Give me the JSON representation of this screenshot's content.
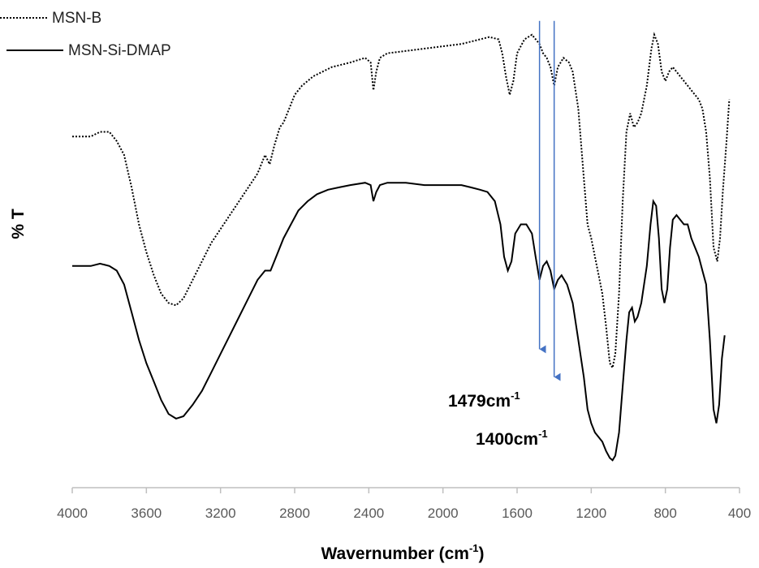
{
  "chart_data": {
    "type": "line",
    "title": "",
    "xlabel": "Wavernumber (cm",
    "xlabel_sup": "-1",
    "xlabel_tail": ")",
    "ylabel": "% T",
    "xlim": [
      4000,
      400
    ],
    "x_reversed": true,
    "x_ticks": [
      "4000",
      "3600",
      "3200",
      "2800",
      "2400",
      "2000",
      "1600",
      "1200",
      "800",
      "400"
    ],
    "y_ticks_shown": false,
    "grid": false,
    "legend_position": "top-left",
    "series": [
      {
        "name": "MSN-B",
        "style": "dotted",
        "color": "#000000",
        "points": [
          [
            4000,
            74
          ],
          [
            3900,
            74
          ],
          [
            3850,
            75
          ],
          [
            3800,
            75
          ],
          [
            3760,
            73
          ],
          [
            3720,
            70
          ],
          [
            3680,
            63
          ],
          [
            3640,
            55
          ],
          [
            3600,
            49
          ],
          [
            3560,
            44
          ],
          [
            3520,
            40
          ],
          [
            3480,
            38
          ],
          [
            3440,
            37.5
          ],
          [
            3400,
            39
          ],
          [
            3350,
            43
          ],
          [
            3300,
            47
          ],
          [
            3250,
            51
          ],
          [
            3200,
            54
          ],
          [
            3150,
            57
          ],
          [
            3100,
            60
          ],
          [
            3050,
            63
          ],
          [
            3000,
            66
          ],
          [
            2960,
            70
          ],
          [
            2935,
            68
          ],
          [
            2910,
            72
          ],
          [
            2880,
            76
          ],
          [
            2860,
            77
          ],
          [
            2830,
            80
          ],
          [
            2800,
            83
          ],
          [
            2760,
            85
          ],
          [
            2700,
            87
          ],
          [
            2600,
            89
          ],
          [
            2500,
            90
          ],
          [
            2420,
            91
          ],
          [
            2390,
            90
          ],
          [
            2375,
            84
          ],
          [
            2360,
            88
          ],
          [
            2340,
            91
          ],
          [
            2300,
            92
          ],
          [
            2200,
            92.5
          ],
          [
            2100,
            93
          ],
          [
            2000,
            93.5
          ],
          [
            1900,
            94
          ],
          [
            1800,
            95
          ],
          [
            1750,
            95.5
          ],
          [
            1700,
            95
          ],
          [
            1680,
            92
          ],
          [
            1660,
            87
          ],
          [
            1640,
            83
          ],
          [
            1620,
            86
          ],
          [
            1600,
            92
          ],
          [
            1560,
            95
          ],
          [
            1520,
            96
          ],
          [
            1479,
            94
          ],
          [
            1460,
            92
          ],
          [
            1440,
            91
          ],
          [
            1420,
            89
          ],
          [
            1400,
            85
          ],
          [
            1380,
            89
          ],
          [
            1350,
            91
          ],
          [
            1320,
            90
          ],
          [
            1300,
            88
          ],
          [
            1270,
            80
          ],
          [
            1240,
            65
          ],
          [
            1220,
            55
          ],
          [
            1200,
            52
          ],
          [
            1180,
            48
          ],
          [
            1160,
            44
          ],
          [
            1140,
            40
          ],
          [
            1120,
            33
          ],
          [
            1100,
            25
          ],
          [
            1085,
            24
          ],
          [
            1070,
            27
          ],
          [
            1050,
            40
          ],
          [
            1030,
            60
          ],
          [
            1010,
            75
          ],
          [
            990,
            79
          ],
          [
            970,
            76
          ],
          [
            950,
            77
          ],
          [
            930,
            79
          ],
          [
            900,
            85
          ],
          [
            875,
            93
          ],
          [
            860,
            96
          ],
          [
            840,
            94
          ],
          [
            820,
            88
          ],
          [
            800,
            86
          ],
          [
            780,
            88
          ],
          [
            760,
            89
          ],
          [
            740,
            88
          ],
          [
            720,
            87
          ],
          [
            700,
            86
          ],
          [
            680,
            85
          ],
          [
            660,
            84
          ],
          [
            640,
            83
          ],
          [
            620,
            82
          ],
          [
            600,
            80
          ],
          [
            580,
            75
          ],
          [
            560,
            65
          ],
          [
            540,
            50
          ],
          [
            520,
            47
          ],
          [
            505,
            52
          ],
          [
            490,
            62
          ],
          [
            470,
            73
          ],
          [
            455,
            82
          ]
        ]
      },
      {
        "name": "MSN-Si-DMAP",
        "style": "solid",
        "color": "#000000",
        "points": [
          [
            4000,
            46
          ],
          [
            3900,
            46
          ],
          [
            3850,
            46.5
          ],
          [
            3800,
            46
          ],
          [
            3760,
            45
          ],
          [
            3720,
            42
          ],
          [
            3680,
            36
          ],
          [
            3640,
            30
          ],
          [
            3600,
            25
          ],
          [
            3560,
            21
          ],
          [
            3520,
            17
          ],
          [
            3480,
            14
          ],
          [
            3440,
            13
          ],
          [
            3400,
            13.5
          ],
          [
            3350,
            16
          ],
          [
            3300,
            19
          ],
          [
            3250,
            23
          ],
          [
            3200,
            27
          ],
          [
            3150,
            31
          ],
          [
            3100,
            35
          ],
          [
            3050,
            39
          ],
          [
            3000,
            43
          ],
          [
            2960,
            45
          ],
          [
            2930,
            45
          ],
          [
            2900,
            48
          ],
          [
            2860,
            52
          ],
          [
            2820,
            55
          ],
          [
            2780,
            58
          ],
          [
            2730,
            60
          ],
          [
            2680,
            61.5
          ],
          [
            2620,
            62.5
          ],
          [
            2560,
            63
          ],
          [
            2500,
            63.5
          ],
          [
            2420,
            64
          ],
          [
            2390,
            63.5
          ],
          [
            2375,
            60
          ],
          [
            2360,
            62
          ],
          [
            2340,
            63.5
          ],
          [
            2300,
            64
          ],
          [
            2200,
            64
          ],
          [
            2100,
            63.5
          ],
          [
            2000,
            63.5
          ],
          [
            1900,
            63.5
          ],
          [
            1850,
            63
          ],
          [
            1800,
            62.5
          ],
          [
            1760,
            62
          ],
          [
            1720,
            60
          ],
          [
            1690,
            55
          ],
          [
            1670,
            48
          ],
          [
            1650,
            45
          ],
          [
            1630,
            47
          ],
          [
            1610,
            53
          ],
          [
            1580,
            55
          ],
          [
            1550,
            55
          ],
          [
            1520,
            53
          ],
          [
            1500,
            48
          ],
          [
            1479,
            43
          ],
          [
            1460,
            46
          ],
          [
            1440,
            47
          ],
          [
            1420,
            45
          ],
          [
            1400,
            41
          ],
          [
            1380,
            43
          ],
          [
            1360,
            44
          ],
          [
            1330,
            42
          ],
          [
            1300,
            38
          ],
          [
            1270,
            30
          ],
          [
            1240,
            22
          ],
          [
            1220,
            15
          ],
          [
            1200,
            12
          ],
          [
            1180,
            10
          ],
          [
            1160,
            9
          ],
          [
            1140,
            8
          ],
          [
            1120,
            6
          ],
          [
            1100,
            4.5
          ],
          [
            1085,
            4
          ],
          [
            1070,
            5
          ],
          [
            1050,
            10
          ],
          [
            1030,
            20
          ],
          [
            1010,
            30
          ],
          [
            995,
            36
          ],
          [
            980,
            37
          ],
          [
            965,
            34
          ],
          [
            950,
            35
          ],
          [
            930,
            38
          ],
          [
            900,
            46
          ],
          [
            880,
            55
          ],
          [
            865,
            60
          ],
          [
            850,
            59
          ],
          [
            835,
            52
          ],
          [
            820,
            41
          ],
          [
            805,
            38
          ],
          [
            790,
            41
          ],
          [
            775,
            50
          ],
          [
            760,
            56
          ],
          [
            740,
            57
          ],
          [
            720,
            56
          ],
          [
            700,
            55
          ],
          [
            680,
            55
          ],
          [
            660,
            52
          ],
          [
            640,
            50
          ],
          [
            620,
            48
          ],
          [
            600,
            45
          ],
          [
            580,
            42
          ],
          [
            560,
            30
          ],
          [
            540,
            15
          ],
          [
            525,
            12
          ],
          [
            510,
            16
          ],
          [
            495,
            26
          ],
          [
            480,
            31
          ]
        ]
      }
    ],
    "annotations": [
      {
        "label": "1479cm",
        "sup": "-1",
        "x": 1479,
        "y_from": 99,
        "y_to": 28,
        "color": "#4472C4"
      },
      {
        "label": "1400cm",
        "sup": "-1",
        "x": 1400,
        "y_from": 99,
        "y_to": 22,
        "color": "#4472C4"
      }
    ]
  }
}
